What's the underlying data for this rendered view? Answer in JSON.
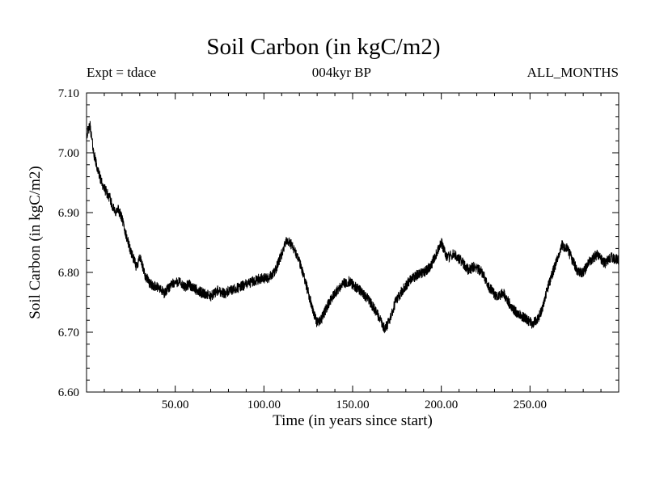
{
  "page": {
    "background": "#ffffff"
  },
  "header": {
    "title": "Soil Carbon (in kgC/m2)",
    "left_annotation": "Expt = tdace",
    "center_annotation": "004kyr BP",
    "right_annotation": "ALL_MONTHS"
  },
  "chart_data": {
    "type": "line",
    "title": "Soil Carbon (in kgC/m2)",
    "xlabel": "Time (in years since start)",
    "ylabel": "Soil Carbon (in kgC/m2)",
    "xlim": [
      0,
      300
    ],
    "ylim": [
      6.6,
      7.1
    ],
    "x_major_ticks": [
      50,
      100,
      150,
      200,
      250
    ],
    "x_tick_labels": [
      "50.00",
      "100.00",
      "150.00",
      "200.00",
      "250.00"
    ],
    "x_minor_step": 10,
    "y_major_ticks": [
      6.6,
      6.7,
      6.8,
      6.9,
      7.0,
      7.1
    ],
    "y_tick_labels": [
      "6.60",
      "6.70",
      "6.80",
      "6.90",
      "7.00",
      "7.10"
    ],
    "y_minor_step": 0.02,
    "grid": false,
    "line_color": "#000000",
    "series": [
      {
        "name": "soil_carbon",
        "keypoints_x": [
          0,
          2,
          4,
          6,
          8,
          10,
          13,
          16,
          18,
          20,
          22,
          25,
          28,
          30,
          33,
          36,
          40,
          44,
          48,
          52,
          55,
          58,
          62,
          66,
          70,
          74,
          78,
          82,
          86,
          90,
          94,
          98,
          102,
          106,
          110,
          113,
          116,
          119,
          122,
          126,
          130,
          133,
          136,
          140,
          144,
          148,
          152,
          156,
          160,
          164,
          168,
          171,
          174,
          178,
          182,
          186,
          190,
          194,
          197,
          200,
          203,
          207,
          211,
          215,
          219,
          223,
          227,
          231,
          235,
          239,
          243,
          247,
          251,
          254,
          257,
          260,
          264,
          268,
          271,
          274,
          277,
          280,
          284,
          288,
          292,
          296,
          300
        ],
        "keypoints_y": [
          7.03,
          7.045,
          7.0,
          6.975,
          6.955,
          6.94,
          6.925,
          6.9,
          6.905,
          6.89,
          6.865,
          6.835,
          6.81,
          6.825,
          6.795,
          6.78,
          6.775,
          6.765,
          6.78,
          6.785,
          6.775,
          6.78,
          6.77,
          6.765,
          6.76,
          6.77,
          6.765,
          6.77,
          6.775,
          6.78,
          6.785,
          6.79,
          6.79,
          6.8,
          6.83,
          6.855,
          6.845,
          6.825,
          6.8,
          6.755,
          6.715,
          6.725,
          6.745,
          6.765,
          6.78,
          6.785,
          6.775,
          6.765,
          6.75,
          6.73,
          6.705,
          6.72,
          6.75,
          6.77,
          6.785,
          6.795,
          6.8,
          6.81,
          6.83,
          6.85,
          6.825,
          6.83,
          6.82,
          6.805,
          6.81,
          6.8,
          6.775,
          6.76,
          6.765,
          6.745,
          6.73,
          6.725,
          6.715,
          6.72,
          6.74,
          6.775,
          6.81,
          6.845,
          6.84,
          6.82,
          6.8,
          6.8,
          6.82,
          6.83,
          6.815,
          6.825,
          6.82
        ],
        "samples_per_year": 12,
        "noise_amplitude": 0.009,
        "noise_seed": 42
      }
    ]
  }
}
